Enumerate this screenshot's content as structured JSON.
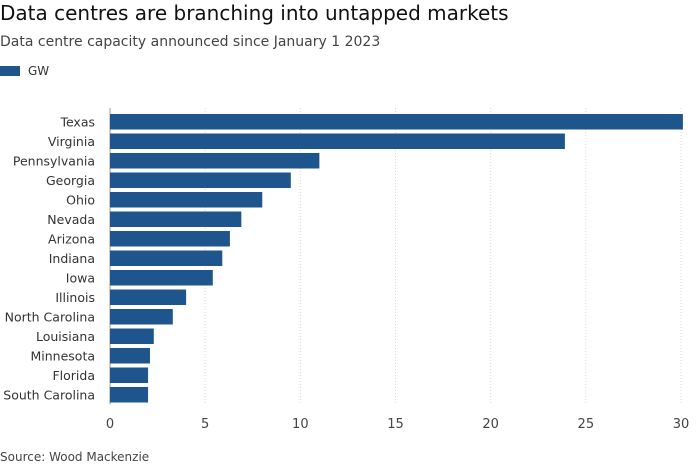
{
  "header": {
    "title": "Data centres are branching into untapped markets",
    "subtitle": "Data centre capacity announced since January 1 2023"
  },
  "legend": {
    "label": "GW",
    "color": "#1e558c"
  },
  "source": "Source: Wood Mackenzie",
  "chart_data": {
    "type": "bar",
    "orientation": "horizontal",
    "categories": [
      "Texas",
      "Virginia",
      "Pennsylvania",
      "Georgia",
      "Ohio",
      "Nevada",
      "Arizona",
      "Indiana",
      "Iowa",
      "Illinois",
      "North Carolina",
      "Louisiana",
      "Minnesota",
      "Florida",
      "South Carolina"
    ],
    "series": [
      {
        "name": "GW",
        "values": [
          30.1,
          23.9,
          11.0,
          9.5,
          8.0,
          6.9,
          6.3,
          5.9,
          5.4,
          4.0,
          3.3,
          2.3,
          2.1,
          2.0,
          2.0
        ]
      }
    ],
    "xlim": [
      0,
      30
    ],
    "xticks": [
      0,
      5,
      10,
      15,
      20,
      25,
      30
    ],
    "grid": true,
    "legend_position": "top-left",
    "bar_color": "#1e558c",
    "grid_color": "#d9d9d9"
  }
}
